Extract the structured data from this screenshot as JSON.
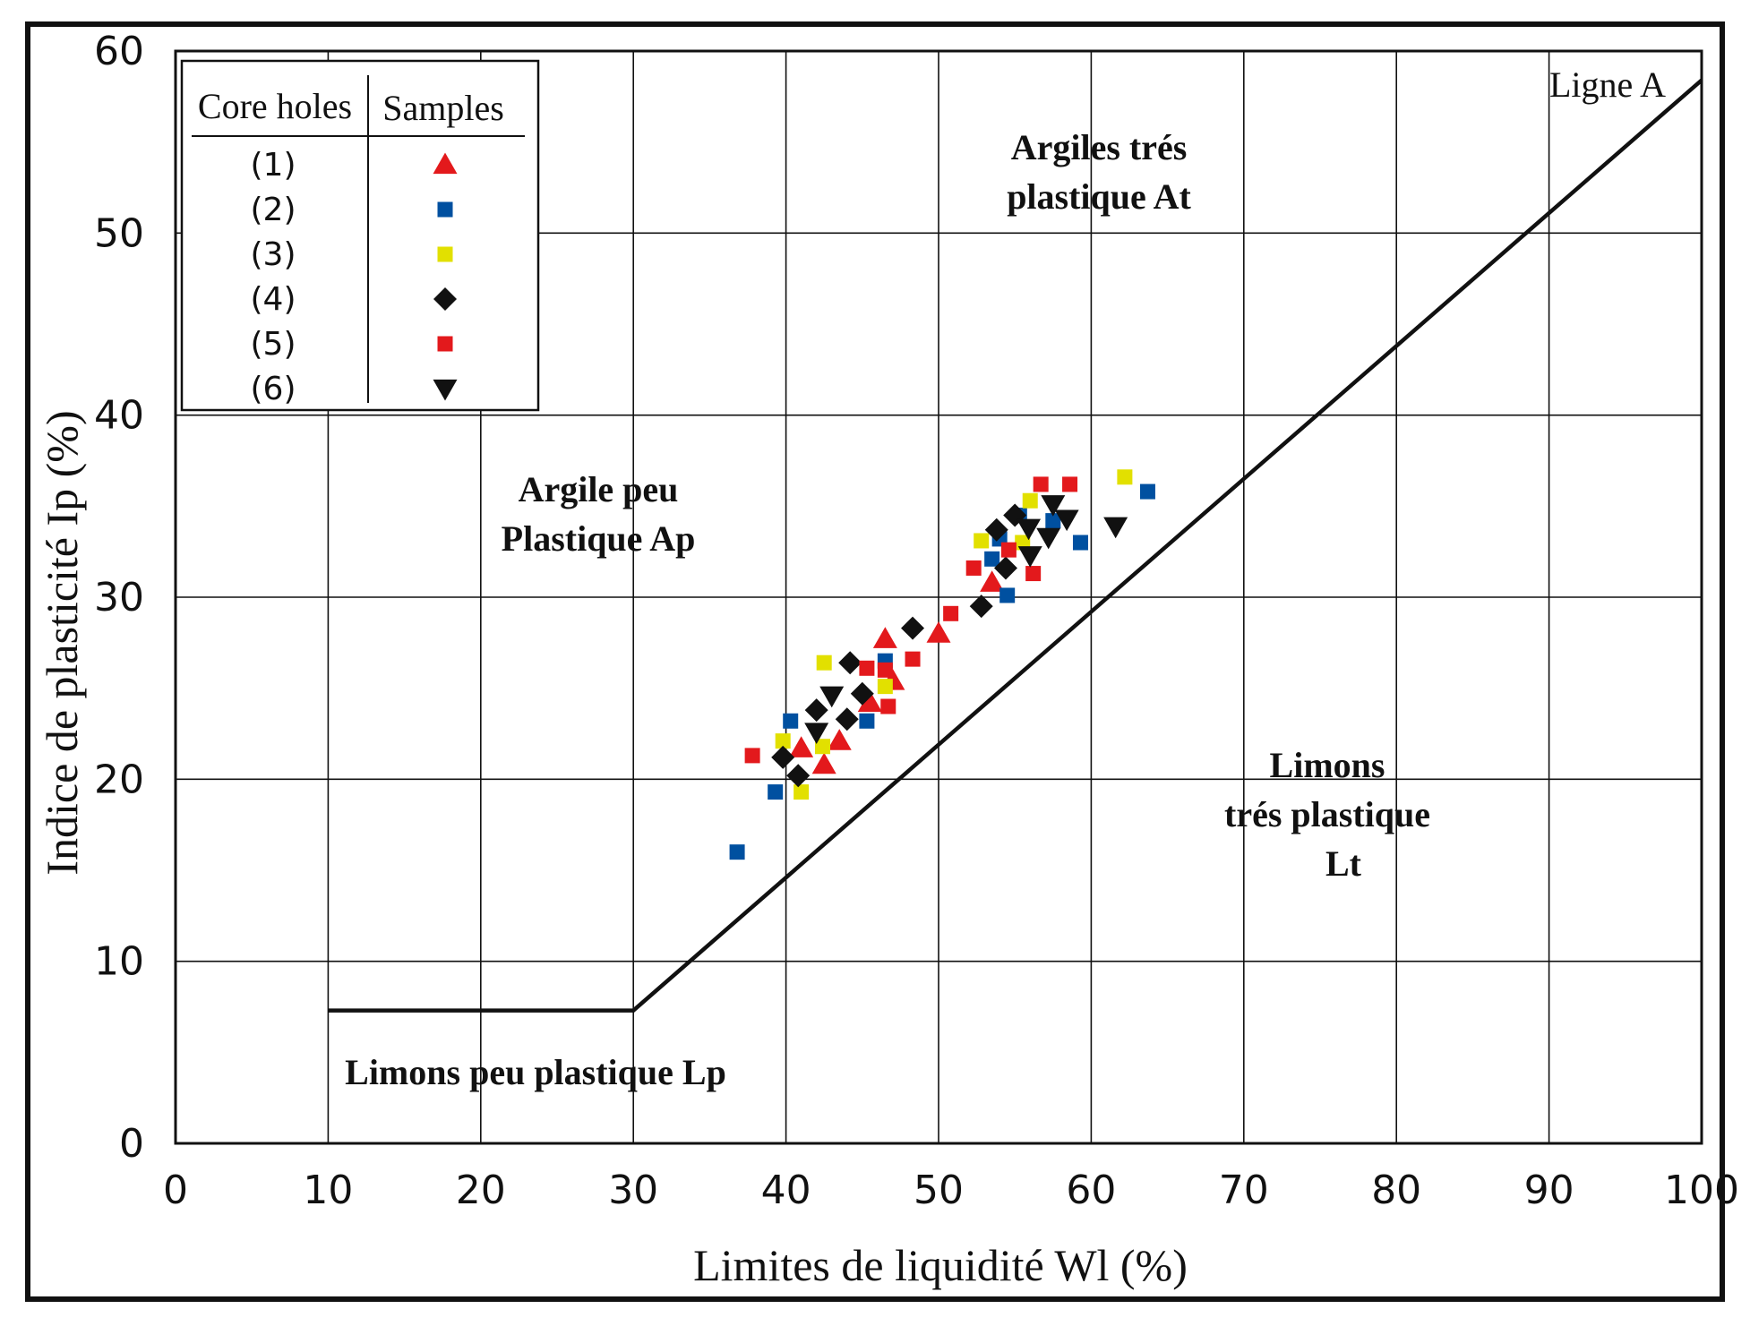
{
  "chart_data": {
    "type": "scatter",
    "xlabel": "Limites de liquidité Wl (%)",
    "ylabel": "Indice de plasticité Ip (%)",
    "xlim": [
      0,
      100
    ],
    "ylim": [
      0,
      60
    ],
    "xticks": [
      "0",
      "10",
      "20",
      "30",
      "40",
      "50",
      "60",
      "70",
      "80",
      "90",
      "100"
    ],
    "yticks": [
      "0",
      "10",
      "20",
      "30",
      "40",
      "50",
      "60"
    ],
    "grid": true,
    "legend": {
      "placement": "top-left",
      "header_left": "Core holes",
      "header_right": "Samples"
    },
    "regions": [
      {
        "text": [
          "Argiles trés",
          "plastique At"
        ]
      },
      {
        "text": [
          "Argile peu",
          "Plastique Ap"
        ]
      },
      {
        "text": [
          "Limons",
          "trés plastique",
          "Lt"
        ]
      },
      {
        "text": [
          "Limons peu plastique Lp"
        ]
      }
    ],
    "line_a": {
      "name": "Ligne A",
      "points": [
        [
          10,
          7.3
        ],
        [
          30,
          7.3
        ],
        [
          100,
          58.4
        ]
      ]
    },
    "series": [
      {
        "name": "(1)",
        "marker": "triangle-up",
        "color": "#e3191c",
        "points": [
          [
            41,
            21.7
          ],
          [
            42.5,
            20.8
          ],
          [
            43.5,
            22.1
          ],
          [
            45.5,
            24.2
          ],
          [
            46.5,
            27.7
          ],
          [
            47,
            25.4
          ],
          [
            50,
            28
          ],
          [
            53.5,
            30.8
          ]
        ]
      },
      {
        "name": "(2)",
        "marker": "square",
        "color": "#0050a0",
        "points": [
          [
            36.8,
            16
          ],
          [
            39.3,
            19.3
          ],
          [
            40.3,
            23.2
          ],
          [
            45.3,
            23.2
          ],
          [
            46.5,
            26.5
          ],
          [
            53.5,
            32.1
          ],
          [
            54.5,
            30.1
          ],
          [
            54,
            33.2
          ],
          [
            55.3,
            34.5
          ],
          [
            57.5,
            34.2
          ],
          [
            59.3,
            33
          ],
          [
            63.7,
            35.8
          ]
        ]
      },
      {
        "name": "(3)",
        "marker": "square",
        "color": "#e2e000",
        "points": [
          [
            39.8,
            22.1
          ],
          [
            41,
            19.3
          ],
          [
            42.4,
            21.8
          ],
          [
            42.5,
            26.4
          ],
          [
            46.5,
            25.1
          ],
          [
            52.8,
            33.1
          ],
          [
            55.5,
            33
          ],
          [
            56,
            35.3
          ],
          [
            62.2,
            36.6
          ]
        ]
      },
      {
        "name": "(4)",
        "marker": "diamond",
        "color": "#111111",
        "points": [
          [
            39.8,
            21.2
          ],
          [
            40.8,
            20.2
          ],
          [
            42,
            23.8
          ],
          [
            44,
            23.3
          ],
          [
            44.2,
            26.4
          ],
          [
            45,
            24.7
          ],
          [
            48.3,
            28.3
          ],
          [
            52.8,
            29.5
          ],
          [
            53.8,
            33.7
          ],
          [
            54.4,
            31.6
          ],
          [
            55,
            34.5
          ]
        ]
      },
      {
        "name": "(5)",
        "marker": "square",
        "color": "#e3191c",
        "points": [
          [
            37.8,
            21.3
          ],
          [
            45.3,
            26.1
          ],
          [
            46.5,
            26
          ],
          [
            46.7,
            24
          ],
          [
            48.3,
            26.6
          ],
          [
            50.8,
            29.1
          ],
          [
            52.3,
            31.6
          ],
          [
            54.6,
            32.6
          ],
          [
            56.2,
            31.3
          ],
          [
            56.7,
            36.2
          ],
          [
            58.6,
            36.2
          ]
        ]
      },
      {
        "name": "(6)",
        "marker": "triangle-down",
        "color": "#111111",
        "points": [
          [
            42,
            22.6
          ],
          [
            43,
            24.6
          ],
          [
            55.9,
            33.8
          ],
          [
            56,
            32.3
          ],
          [
            57.2,
            33.3
          ],
          [
            57.5,
            35.1
          ],
          [
            58.4,
            34.3
          ],
          [
            61.6,
            33.9
          ]
        ]
      }
    ]
  }
}
